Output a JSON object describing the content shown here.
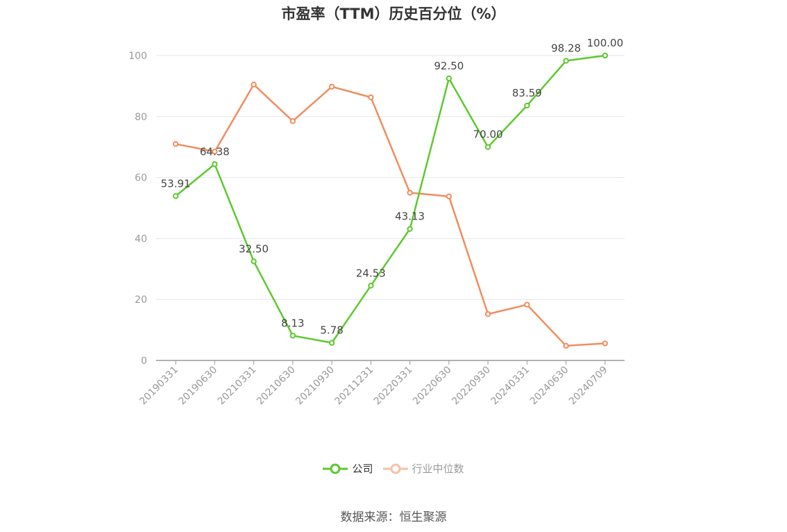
{
  "chart_data": {
    "type": "line",
    "title": "市盈率（TTM）历史百分位（%）",
    "categories": [
      "20190331",
      "20190630",
      "20210331",
      "20210630",
      "20210930",
      "20211231",
      "20220331",
      "20220630",
      "20220930",
      "20240331",
      "20240630",
      "20240709"
    ],
    "ylim": [
      0,
      100
    ],
    "yticks": [
      0,
      20,
      40,
      60,
      80,
      100
    ],
    "grid": true,
    "legend_position": "bottom",
    "series": [
      {
        "name": "公司",
        "color": "#5cc92d",
        "values": [
          53.91,
          64.38,
          32.5,
          8.13,
          5.78,
          24.53,
          43.13,
          92.5,
          70.0,
          83.59,
          98.28,
          100.0
        ],
        "labels": [
          "53.91",
          "64.38",
          "32.50",
          "8.13",
          "5.78",
          "24.53",
          "43.13",
          "92.50",
          "70.00",
          "83.59",
          "98.28",
          "100.00"
        ]
      },
      {
        "name": "行业中位数",
        "color": "#f28c5c",
        "values": [
          71.0,
          68.5,
          90.5,
          78.5,
          89.8,
          86.3,
          55.0,
          53.8,
          15.2,
          18.3,
          4.8,
          5.6
        ]
      }
    ]
  },
  "legend": {
    "company_label": "公司",
    "industry_label": "行业中位数",
    "industry_text_color": "#999999",
    "company_text_color": "#333333"
  },
  "source_text": "数据来源：恒生聚源"
}
